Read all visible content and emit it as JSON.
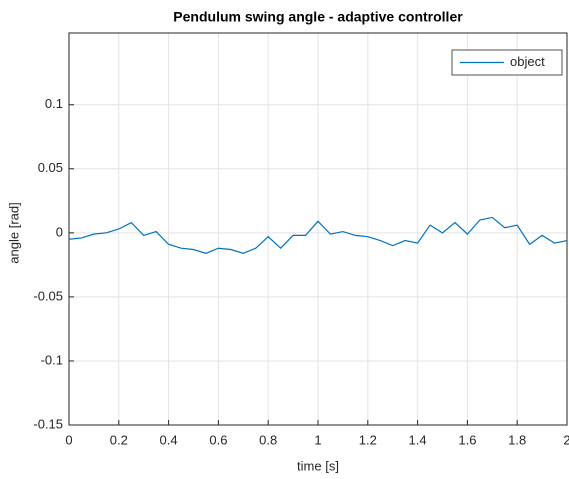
{
  "chart_data": {
    "type": "line",
    "title": "Pendulum swing angle - adaptive controller",
    "xlabel": "time [s]",
    "ylabel": "angle [rad]",
    "x": [
      0,
      0.05,
      0.1,
      0.15,
      0.2,
      0.25,
      0.3,
      0.35,
      0.4,
      0.45,
      0.5,
      0.55,
      0.6,
      0.65,
      0.7,
      0.75,
      0.8,
      0.85,
      0.9,
      0.95,
      1,
      1.05,
      1.1,
      1.15,
      1.2,
      1.25,
      1.3,
      1.35,
      1.4,
      1.45,
      1.5,
      1.55,
      1.6,
      1.65,
      1.7,
      1.75,
      1.8,
      1.85,
      1.9,
      1.95,
      2
    ],
    "series": [
      {
        "name": "object",
        "color": "#0072bd",
        "values": [
          -0.005,
          -0.004,
          -0.001,
          0,
          0.003,
          0.008,
          -0.002,
          0.001,
          -0.009,
          -0.012,
          -0.013,
          -0.016,
          -0.012,
          -0.013,
          -0.016,
          -0.012,
          -0.003,
          -0.012,
          -0.002,
          -0.002,
          0.009,
          -0.001,
          0.001,
          -0.002,
          -0.003,
          -0.006,
          -0.01,
          -0.006,
          -0.008,
          0.006,
          0,
          0.008,
          -0.001,
          0.01,
          0.012,
          0.004,
          0.006,
          -0.009,
          -0.002,
          -0.008,
          -0.006
        ]
      }
    ],
    "xlim": [
      0,
      2
    ],
    "xticks": [
      0,
      0.2,
      0.4,
      0.6,
      0.8,
      1,
      1.2,
      1.4,
      1.6,
      1.8,
      2
    ],
    "ylim": [
      -0.15,
      0.156
    ],
    "yticks": [
      -0.15,
      -0.1,
      -0.05,
      0,
      0.05,
      0.1
    ],
    "grid": true,
    "legend": "northeast"
  }
}
